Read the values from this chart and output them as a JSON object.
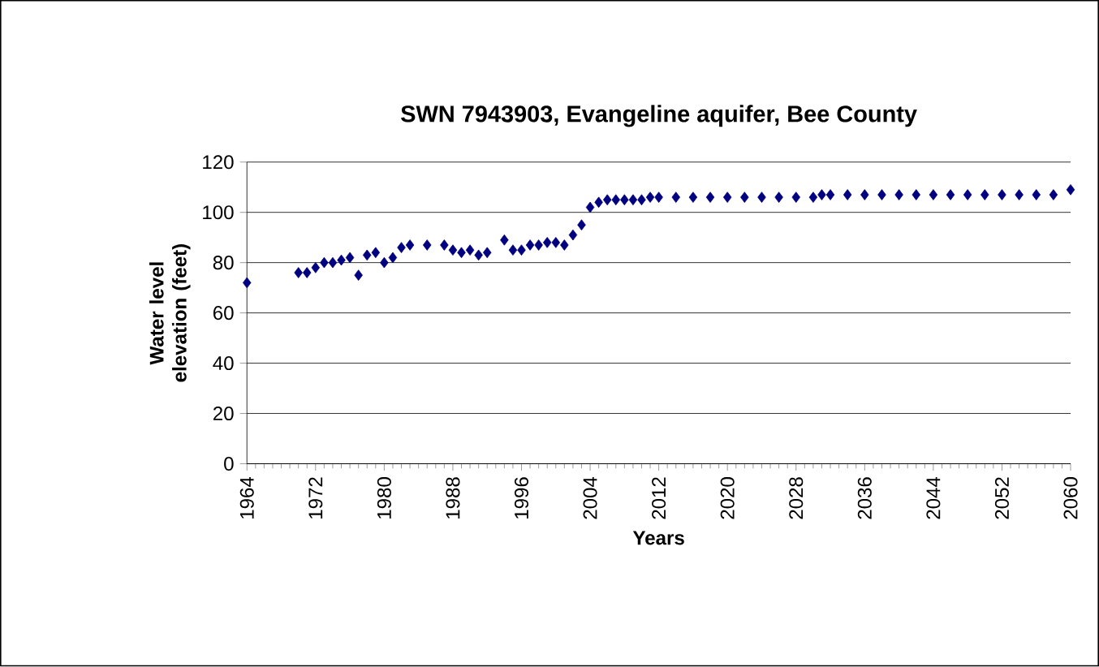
{
  "chart_data": {
    "type": "scatter",
    "title": "SWN 7943903, Evangeline aquifer, Bee County",
    "xlabel": "Years",
    "ylabel": "Water level elevation (feet)",
    "xlim": [
      1964,
      2060
    ],
    "xticks": [
      1964,
      1972,
      1980,
      1988,
      1996,
      2004,
      2012,
      2020,
      2028,
      2036,
      2044,
      2052,
      2060
    ],
    "ylim": [
      0,
      120
    ],
    "yticks": [
      0,
      20,
      40,
      60,
      80,
      100,
      120
    ],
    "grid": "y",
    "marker": "diamond",
    "series": [
      {
        "color": "#000080",
        "x": [
          1964,
          1970,
          1971,
          1972,
          1973,
          1974,
          1975,
          1976,
          1977,
          1978,
          1979,
          1980,
          1981,
          1982,
          1983,
          1985,
          1987,
          1988,
          1989,
          1990,
          1991,
          1992,
          1994,
          1995,
          1996,
          1997,
          1998,
          1999,
          2000,
          2001,
          2002,
          2003,
          2004,
          2005,
          2006,
          2007,
          2008,
          2009,
          2010,
          2011,
          2012,
          2014,
          2016,
          2018,
          2020,
          2022,
          2024,
          2026,
          2028,
          2030,
          2031,
          2032,
          2034,
          2036,
          2038,
          2040,
          2042,
          2044,
          2046,
          2048,
          2050,
          2052,
          2054,
          2056,
          2058,
          2060
        ],
        "values": [
          72,
          76,
          76,
          78,
          80,
          80,
          81,
          82,
          75,
          83,
          84,
          80,
          82,
          86,
          87,
          87,
          87,
          85,
          84,
          85,
          83,
          84,
          89,
          85,
          85,
          87,
          87,
          88,
          88,
          87,
          91,
          95,
          102,
          104,
          105,
          105,
          105,
          105,
          105,
          106,
          106,
          106,
          106,
          106,
          106,
          106,
          106,
          106,
          106,
          106,
          107,
          107,
          107,
          107,
          107,
          107,
          107,
          107,
          107,
          107,
          107,
          107,
          107,
          107,
          107,
          109
        ]
      }
    ]
  }
}
